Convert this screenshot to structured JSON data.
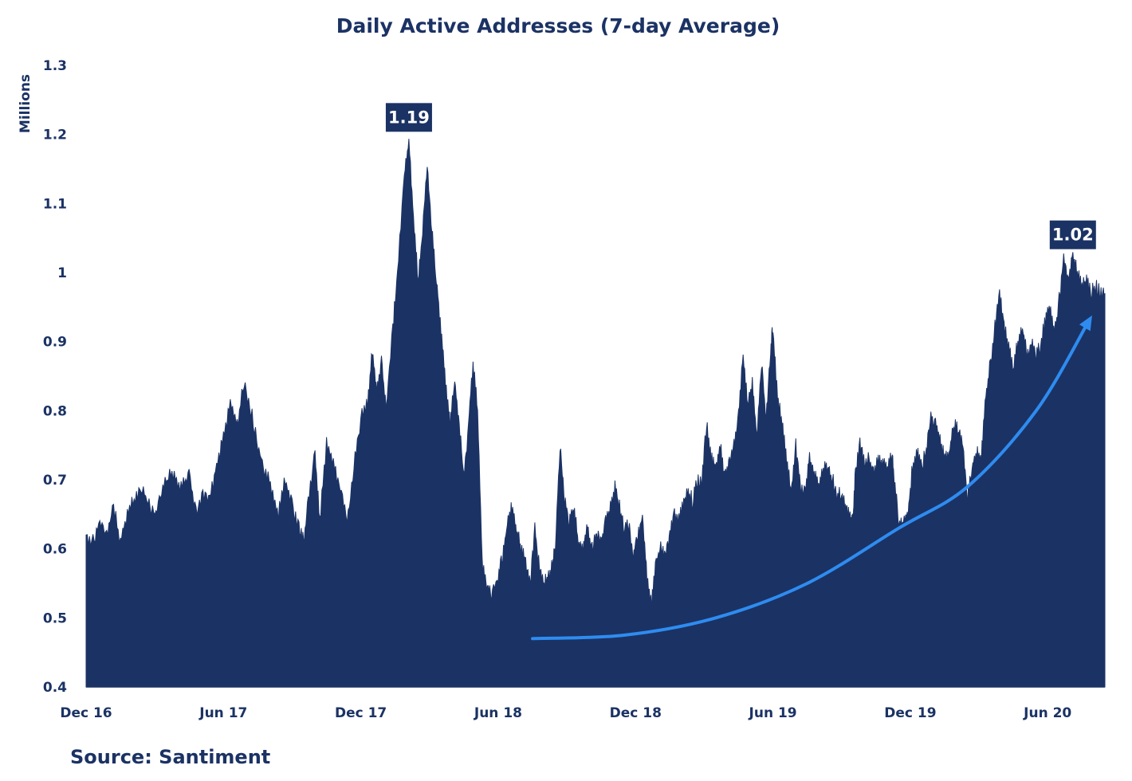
{
  "chart_data": {
    "type": "area",
    "title": "Daily Active Addresses (7-day Average)",
    "ylabel": "Millions",
    "xlabel": "",
    "ylim": [
      0.4,
      1.3
    ],
    "y_ticks": [
      {
        "value": 1.3,
        "label": "1.3"
      },
      {
        "value": 1.2,
        "label": "1.2"
      },
      {
        "value": 1.1,
        "label": "1.1"
      },
      {
        "value": 1.0,
        "label": "1"
      },
      {
        "value": 0.9,
        "label": "0.9"
      },
      {
        "value": 0.8,
        "label": "0.8"
      },
      {
        "value": 0.7,
        "label": "0.7"
      },
      {
        "value": 0.6,
        "label": "0.6"
      },
      {
        "value": 0.5,
        "label": "0.5"
      },
      {
        "value": 0.4,
        "label": "0.4"
      }
    ],
    "x_start_month": 0,
    "x_end_month": 44.5,
    "x_ticks": [
      {
        "month": 0,
        "label": "Dec 16"
      },
      {
        "month": 6,
        "label": "Jun 17"
      },
      {
        "month": 12,
        "label": "Dec 17"
      },
      {
        "month": 18,
        "label": "Jun 18"
      },
      {
        "month": 24,
        "label": "Dec 18"
      },
      {
        "month": 30,
        "label": "Jun 19"
      },
      {
        "month": 36,
        "label": "Dec 19"
      },
      {
        "month": 42,
        "label": "Jun 20"
      }
    ],
    "series": [
      {
        "name": "Daily Active Addresses (7-day Average)",
        "color": "#1b3264",
        "points": [
          [
            0,
            0.62
          ],
          [
            0.3,
            0.61
          ],
          [
            0.6,
            0.64
          ],
          [
            0.9,
            0.62
          ],
          [
            1.2,
            0.66
          ],
          [
            1.5,
            0.61
          ],
          [
            1.8,
            0.65
          ],
          [
            2.1,
            0.67
          ],
          [
            2.4,
            0.69
          ],
          [
            2.7,
            0.67
          ],
          [
            3.0,
            0.65
          ],
          [
            3.3,
            0.68
          ],
          [
            3.6,
            0.71
          ],
          [
            3.9,
            0.7
          ],
          [
            4.2,
            0.69
          ],
          [
            4.5,
            0.71
          ],
          [
            4.8,
            0.65
          ],
          [
            5.1,
            0.68
          ],
          [
            5.4,
            0.67
          ],
          [
            5.7,
            0.72
          ],
          [
            6.0,
            0.76
          ],
          [
            6.3,
            0.81
          ],
          [
            6.6,
            0.78
          ],
          [
            6.9,
            0.84
          ],
          [
            7.2,
            0.8
          ],
          [
            7.5,
            0.75
          ],
          [
            7.8,
            0.71
          ],
          [
            8.1,
            0.69
          ],
          [
            8.4,
            0.65
          ],
          [
            8.7,
            0.7
          ],
          [
            9.0,
            0.66
          ],
          [
            9.3,
            0.63
          ],
          [
            9.5,
            0.61
          ],
          [
            9.7,
            0.67
          ],
          [
            10.0,
            0.74
          ],
          [
            10.2,
            0.64
          ],
          [
            10.5,
            0.75
          ],
          [
            10.8,
            0.72
          ],
          [
            11.1,
            0.69
          ],
          [
            11.4,
            0.64
          ],
          [
            11.7,
            0.72
          ],
          [
            12.0,
            0.79
          ],
          [
            12.3,
            0.81
          ],
          [
            12.5,
            0.89
          ],
          [
            12.7,
            0.83
          ],
          [
            12.9,
            0.87
          ],
          [
            13.1,
            0.8
          ],
          [
            13.4,
            0.92
          ],
          [
            13.6,
            1.0
          ],
          [
            13.9,
            1.14
          ],
          [
            14.1,
            1.19
          ],
          [
            14.3,
            1.08
          ],
          [
            14.5,
            0.99
          ],
          [
            14.7,
            1.06
          ],
          [
            14.9,
            1.16
          ],
          [
            15.1,
            1.06
          ],
          [
            15.3,
            0.99
          ],
          [
            15.5,
            0.92
          ],
          [
            15.7,
            0.84
          ],
          [
            15.9,
            0.78
          ],
          [
            16.1,
            0.84
          ],
          [
            16.3,
            0.78
          ],
          [
            16.5,
            0.7
          ],
          [
            16.7,
            0.78
          ],
          [
            16.9,
            0.87
          ],
          [
            17.1,
            0.8
          ],
          [
            17.3,
            0.58
          ],
          [
            17.5,
            0.55
          ],
          [
            17.7,
            0.53
          ],
          [
            18.0,
            0.56
          ],
          [
            18.2,
            0.59
          ],
          [
            18.4,
            0.64
          ],
          [
            18.6,
            0.66
          ],
          [
            18.8,
            0.63
          ],
          [
            19.0,
            0.6
          ],
          [
            19.2,
            0.58
          ],
          [
            19.4,
            0.55
          ],
          [
            19.6,
            0.63
          ],
          [
            19.8,
            0.57
          ],
          [
            20.0,
            0.55
          ],
          [
            20.2,
            0.56
          ],
          [
            20.4,
            0.58
          ],
          [
            20.5,
            0.61
          ],
          [
            20.7,
            0.75
          ],
          [
            20.9,
            0.67
          ],
          [
            21.1,
            0.64
          ],
          [
            21.3,
            0.66
          ],
          [
            21.5,
            0.61
          ],
          [
            21.7,
            0.6
          ],
          [
            21.9,
            0.63
          ],
          [
            22.1,
            0.6
          ],
          [
            22.3,
            0.62
          ],
          [
            22.5,
            0.61
          ],
          [
            22.7,
            0.64
          ],
          [
            22.9,
            0.66
          ],
          [
            23.1,
            0.69
          ],
          [
            23.3,
            0.66
          ],
          [
            23.5,
            0.63
          ],
          [
            23.7,
            0.64
          ],
          [
            23.9,
            0.59
          ],
          [
            24.1,
            0.62
          ],
          [
            24.3,
            0.65
          ],
          [
            24.5,
            0.56
          ],
          [
            24.7,
            0.52
          ],
          [
            24.9,
            0.58
          ],
          [
            25.1,
            0.6
          ],
          [
            25.3,
            0.59
          ],
          [
            25.5,
            0.62
          ],
          [
            25.7,
            0.65
          ],
          [
            25.9,
            0.64
          ],
          [
            26.1,
            0.67
          ],
          [
            26.3,
            0.68
          ],
          [
            26.5,
            0.67
          ],
          [
            26.7,
            0.7
          ],
          [
            26.9,
            0.7
          ],
          [
            27.1,
            0.78
          ],
          [
            27.3,
            0.73
          ],
          [
            27.5,
            0.72
          ],
          [
            27.7,
            0.75
          ],
          [
            27.9,
            0.7
          ],
          [
            28.1,
            0.73
          ],
          [
            28.3,
            0.75
          ],
          [
            28.5,
            0.79
          ],
          [
            28.7,
            0.88
          ],
          [
            28.9,
            0.81
          ],
          [
            29.1,
            0.84
          ],
          [
            29.3,
            0.76
          ],
          [
            29.5,
            0.87
          ],
          [
            29.7,
            0.79
          ],
          [
            29.9,
            0.89
          ],
          [
            30.0,
            0.92
          ],
          [
            30.2,
            0.82
          ],
          [
            30.4,
            0.78
          ],
          [
            30.6,
            0.73
          ],
          [
            30.8,
            0.68
          ],
          [
            31.0,
            0.75
          ],
          [
            31.2,
            0.69
          ],
          [
            31.4,
            0.68
          ],
          [
            31.6,
            0.73
          ],
          [
            31.8,
            0.71
          ],
          [
            32.0,
            0.69
          ],
          [
            32.2,
            0.72
          ],
          [
            32.4,
            0.72
          ],
          [
            32.6,
            0.7
          ],
          [
            32.8,
            0.68
          ],
          [
            33.0,
            0.68
          ],
          [
            33.2,
            0.66
          ],
          [
            33.4,
            0.64
          ],
          [
            33.5,
            0.64
          ],
          [
            33.6,
            0.71
          ],
          [
            33.8,
            0.75
          ],
          [
            34.0,
            0.72
          ],
          [
            34.2,
            0.73
          ],
          [
            34.4,
            0.71
          ],
          [
            34.6,
            0.73
          ],
          [
            34.8,
            0.72
          ],
          [
            35.0,
            0.72
          ],
          [
            35.2,
            0.74
          ],
          [
            35.3,
            0.7
          ],
          [
            35.5,
            0.64
          ],
          [
            35.7,
            0.64
          ],
          [
            35.9,
            0.65
          ],
          [
            36.1,
            0.72
          ],
          [
            36.3,
            0.74
          ],
          [
            36.5,
            0.72
          ],
          [
            36.7,
            0.74
          ],
          [
            36.9,
            0.79
          ],
          [
            37.1,
            0.78
          ],
          [
            37.3,
            0.76
          ],
          [
            37.5,
            0.73
          ],
          [
            37.7,
            0.74
          ],
          [
            37.9,
            0.78
          ],
          [
            38.1,
            0.77
          ],
          [
            38.3,
            0.75
          ],
          [
            38.5,
            0.67
          ],
          [
            38.7,
            0.72
          ],
          [
            38.9,
            0.74
          ],
          [
            39.1,
            0.73
          ],
          [
            39.3,
            0.82
          ],
          [
            39.5,
            0.87
          ],
          [
            39.7,
            0.92
          ],
          [
            39.9,
            0.97
          ],
          [
            40.1,
            0.92
          ],
          [
            40.3,
            0.89
          ],
          [
            40.5,
            0.86
          ],
          [
            40.7,
            0.9
          ],
          [
            40.9,
            0.92
          ],
          [
            41.1,
            0.88
          ],
          [
            41.3,
            0.9
          ],
          [
            41.5,
            0.88
          ],
          [
            41.7,
            0.9
          ],
          [
            41.9,
            0.93
          ],
          [
            42.1,
            0.95
          ],
          [
            42.3,
            0.91
          ],
          [
            42.5,
            0.96
          ],
          [
            42.7,
            1.02
          ],
          [
            42.9,
            0.99
          ],
          [
            43.1,
            1.02
          ],
          [
            43.3,
            1.0
          ],
          [
            43.5,
            0.98
          ],
          [
            43.7,
            0.99
          ],
          [
            43.9,
            0.97
          ],
          [
            44.1,
            0.98
          ],
          [
            44.3,
            0.97
          ],
          [
            44.5,
            0.97
          ]
        ]
      }
    ],
    "annotations": [
      {
        "label": "1.19",
        "month": 14.1,
        "value": 1.19
      },
      {
        "label": "1.02",
        "month": 43.1,
        "value": 1.02
      }
    ],
    "trend_arrow": {
      "color": "#2e8cf0",
      "points": [
        [
          19.5,
          0.47
        ],
        [
          23.5,
          0.475
        ],
        [
          27.5,
          0.5
        ],
        [
          31.5,
          0.55
        ],
        [
          35.5,
          0.63
        ],
        [
          38.5,
          0.69
        ],
        [
          41.5,
          0.8
        ],
        [
          43.8,
          0.93
        ]
      ]
    }
  },
  "source": "Source: Santiment",
  "colors": {
    "area": "#1b3264",
    "text": "#1b3264",
    "arrow": "#2e8cf0"
  }
}
